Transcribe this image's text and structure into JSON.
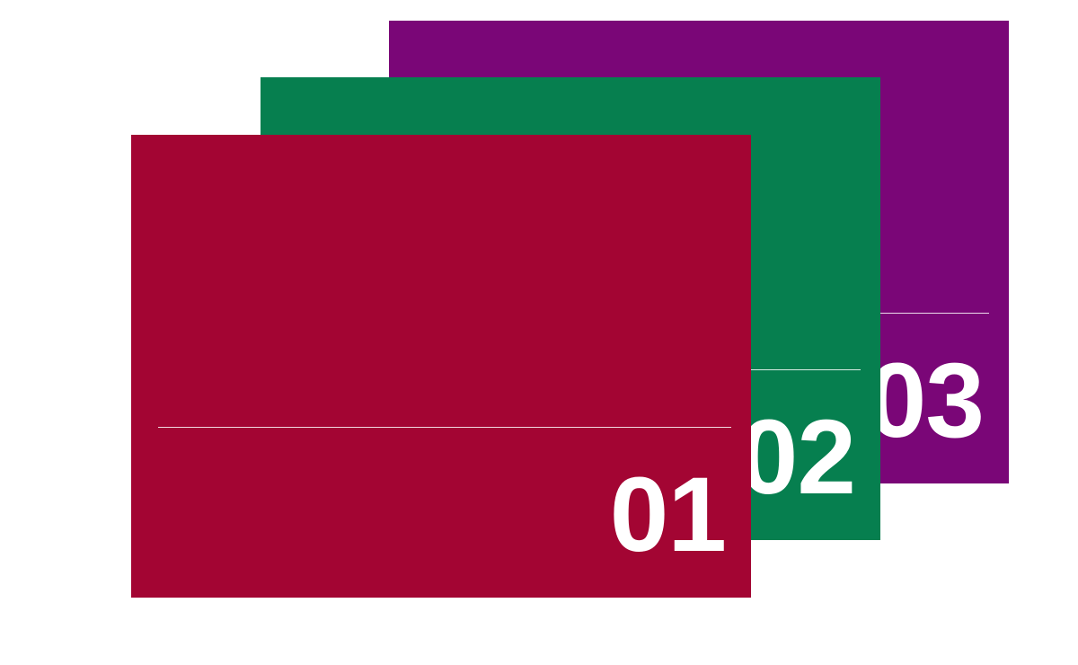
{
  "cards": [
    {
      "number": "03",
      "color": "#7a0677"
    },
    {
      "number": "02",
      "color": "#067f4f"
    },
    {
      "number": "01",
      "color": "#a30533"
    }
  ]
}
